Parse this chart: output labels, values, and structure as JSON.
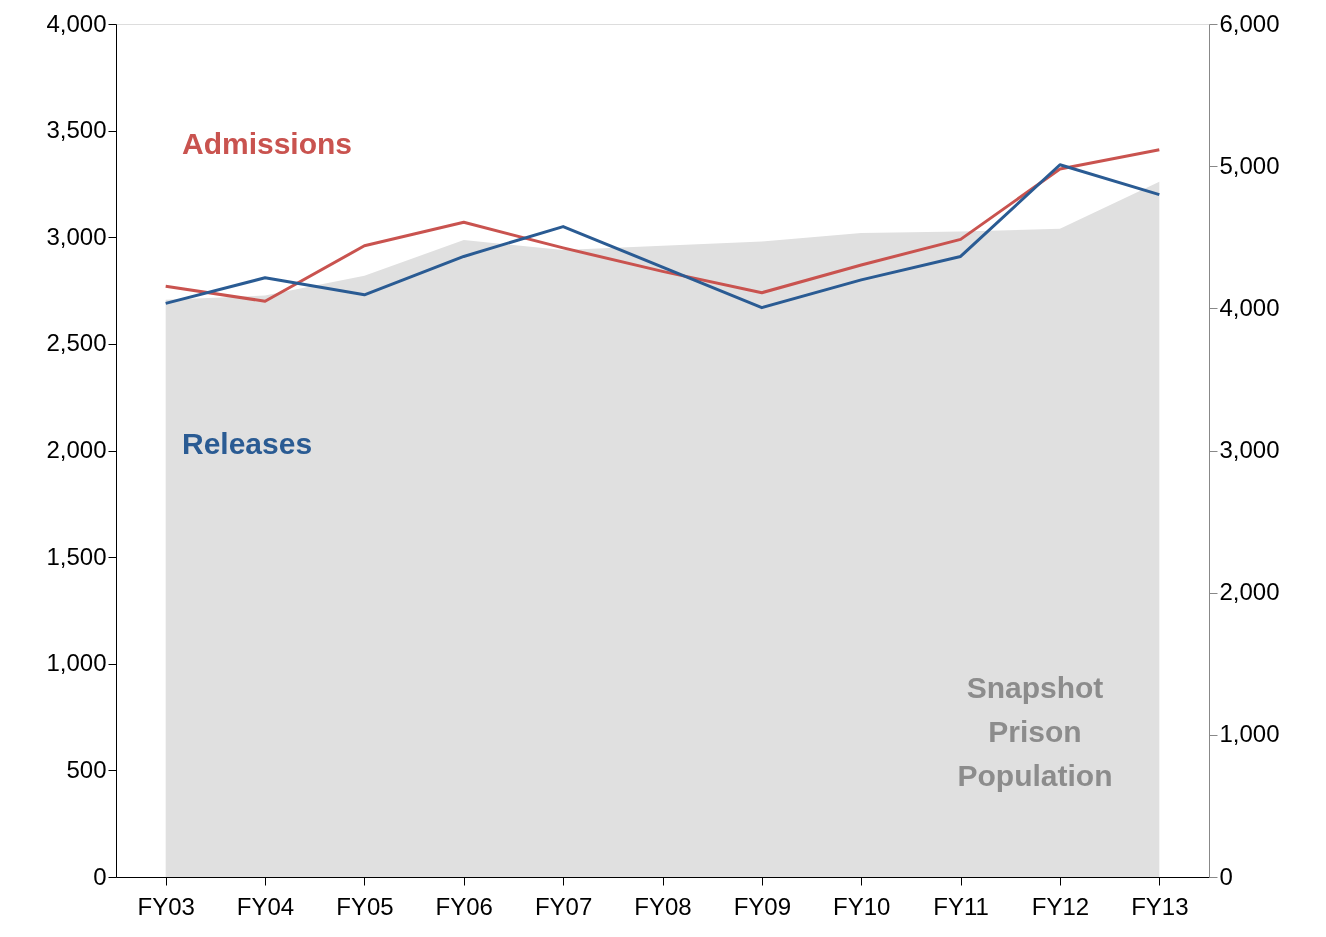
{
  "chart_data": {
    "type": "line",
    "categories": [
      "FY03",
      "FY04",
      "FY05",
      "FY06",
      "FY07",
      "FY08",
      "FY09",
      "FY10",
      "FY11",
      "FY12",
      "FY13"
    ],
    "series": [
      {
        "name": "Snapshot Prison Population",
        "type": "area",
        "axis": "y2",
        "color": "#e0e0e0",
        "values": [
          4060,
          4090,
          4230,
          4480,
          4410,
          4440,
          4470,
          4530,
          4540,
          4560,
          4890
        ]
      },
      {
        "name": "Admissions",
        "color": "#c9534f",
        "values": [
          2770,
          2700,
          2960,
          3070,
          2950,
          2840,
          2740,
          2870,
          2990,
          3320,
          3410
        ]
      },
      {
        "name": "Releases",
        "color": "#2a5b93",
        "values": [
          2690,
          2810,
          2730,
          2910,
          3050,
          2860,
          2670,
          2800,
          2910,
          3340,
          3200
        ]
      }
    ],
    "ylim": [
      0,
      4000
    ],
    "yticks": [
      0,
      500,
      {
        "value": 1000,
        "label": "1,000"
      },
      {
        "value": 1500,
        "label": "1,500"
      },
      {
        "value": 2000,
        "label": "2,000"
      },
      {
        "value": 2500,
        "label": "2,500"
      },
      {
        "value": 3000,
        "label": "3,000"
      },
      {
        "value": 3500,
        "label": "3,500"
      },
      {
        "value": 4000,
        "label": "4,000"
      }
    ],
    "y2lim": [
      0,
      6000
    ],
    "y2ticks": [
      0,
      {
        "value": 1000,
        "label": "1,000"
      },
      {
        "value": 2000,
        "label": "2,000"
      },
      {
        "value": 3000,
        "label": "3,000"
      },
      {
        "value": 4000,
        "label": "4,000"
      },
      {
        "value": 5000,
        "label": "5,000"
      },
      {
        "value": 6000,
        "label": "6,000"
      }
    ],
    "grid": false,
    "marker": "none",
    "line_style": "solid"
  }
}
